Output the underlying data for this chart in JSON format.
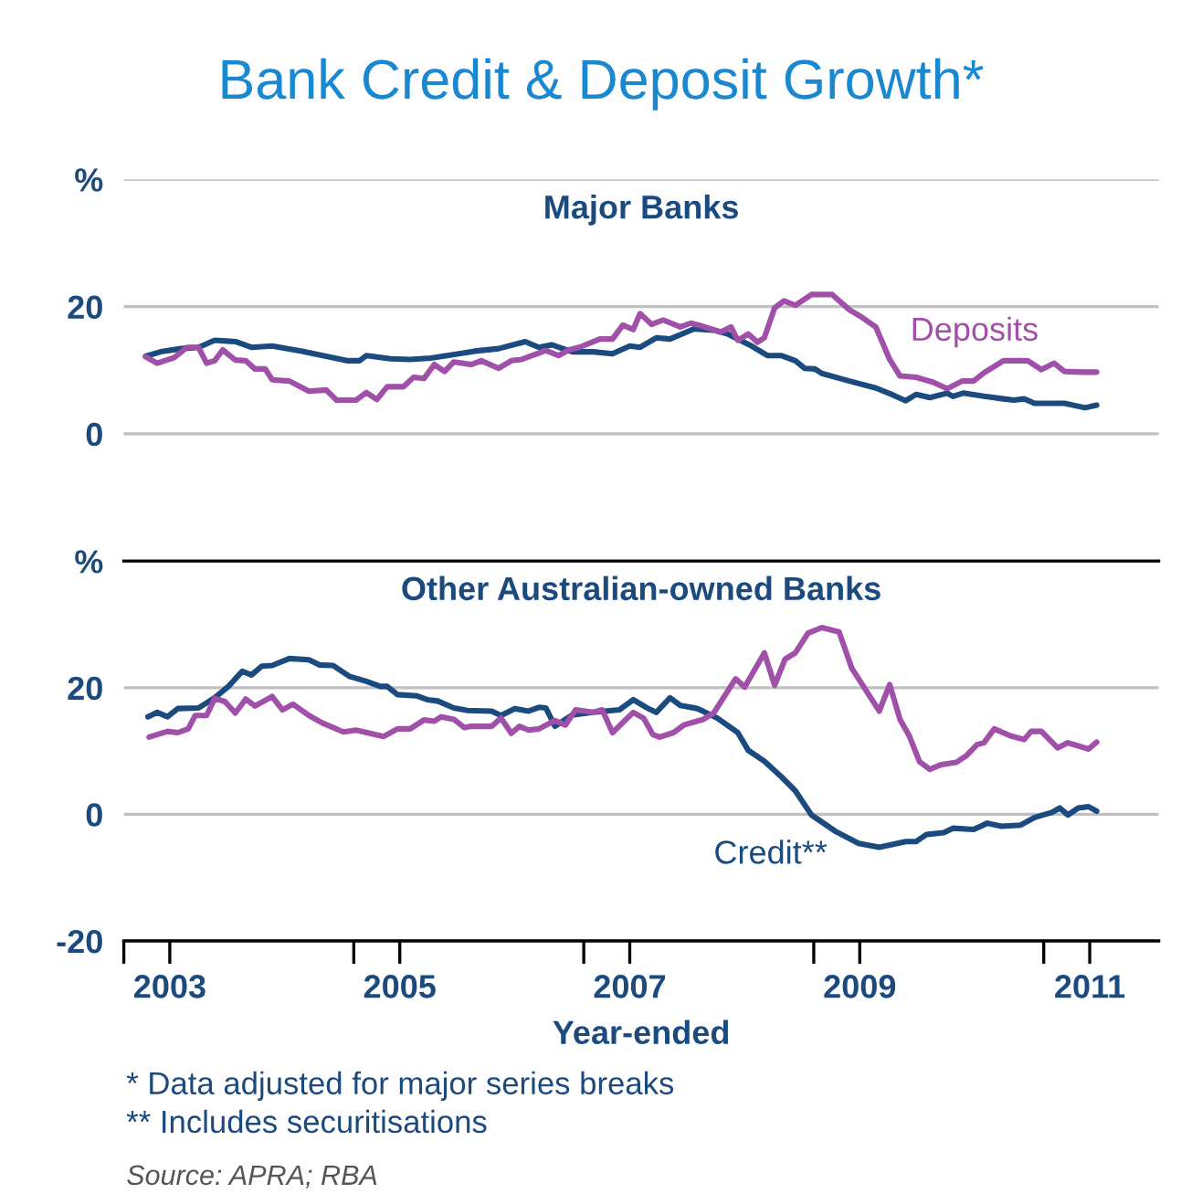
{
  "chart_data": [
    {
      "type": "line",
      "title": "Bank Credit & Deposit Growth*",
      "subtitle": "Major Banks",
      "xlim": [
        2003,
        2012
      ],
      "ylim": [
        -20,
        40
      ],
      "yticks": [
        {
          "value": 40,
          "label": "%"
        },
        20,
        0
      ],
      "grid": "y",
      "tick_labels": "y",
      "series": [
        {
          "color": "#1b4a7f",
          "x": [
            2003.19,
            2003.32,
            2003.5,
            2003.65,
            2003.79,
            2003.97,
            2004.11,
            2004.29,
            2004.55,
            2004.73,
            2004.94,
            2005.05,
            2005.11,
            2005.32,
            2005.49,
            2005.67,
            2005.85,
            2006.05,
            2006.26,
            2006.49,
            2006.61,
            2006.72,
            2006.9,
            2007.08,
            2007.25,
            2007.4,
            2007.49,
            2007.63,
            2007.75,
            2007.96,
            2008.13,
            2008.25,
            2008.46,
            2008.6,
            2008.72,
            2008.84,
            2008.92,
            2009.01,
            2009.07,
            2009.31,
            2009.54,
            2009.69,
            2009.8,
            2009.89,
            2010.01,
            2010.16,
            2010.21,
            2010.3,
            2010.48,
            2010.65,
            2010.74,
            2010.83,
            2010.92,
            2011.18,
            2011.36,
            2011.46
          ],
          "values": [
            12.2,
            12.9,
            13.4,
            13.6,
            14.7,
            14.5,
            13.6,
            13.8,
            13.0,
            12.3,
            11.5,
            11.5,
            12.3,
            11.8,
            11.7,
            11.9,
            12.4,
            13.0,
            13.4,
            14.5,
            13.6,
            14.0,
            12.9,
            12.9,
            12.6,
            13.8,
            13.6,
            15.1,
            14.9,
            16.5,
            16.3,
            15.7,
            13.8,
            12.3,
            12.3,
            11.5,
            10.3,
            10.2,
            9.5,
            8.3,
            7.2,
            6.1,
            5.2,
            6.2,
            5.7,
            6.4,
            5.9,
            6.4,
            5.9,
            5.5,
            5.3,
            5.5,
            4.8,
            4.8,
            4.1,
            4.5
          ]
        },
        {
          "name": "Deposits",
          "color": "#a050a8",
          "x": [
            2003.19,
            2003.29,
            2003.44,
            2003.55,
            2003.65,
            2003.72,
            2003.79,
            2003.86,
            2003.97,
            2004.06,
            2004.14,
            2004.23,
            2004.29,
            2004.44,
            2004.61,
            2004.76,
            2004.85,
            2005.02,
            2005.11,
            2005.2,
            2005.29,
            2005.43,
            2005.52,
            2005.61,
            2005.7,
            2005.79,
            2005.87,
            2006.02,
            2006.11,
            2006.26,
            2006.37,
            2006.46,
            2006.67,
            2006.78,
            2006.87,
            2006.96,
            2007.14,
            2007.25,
            2007.34,
            2007.43,
            2007.49,
            2007.59,
            2007.69,
            2007.84,
            2007.93,
            2008.02,
            2008.19,
            2008.28,
            2008.34,
            2008.43,
            2008.51,
            2008.57,
            2008.66,
            2008.74,
            2008.84,
            2008.98,
            2009.16,
            2009.31,
            2009.42,
            2009.54,
            2009.66,
            2009.75,
            2009.89,
            2010.04,
            2010.16,
            2010.29,
            2010.39,
            2010.48,
            2010.65,
            2010.86,
            2010.98,
            2011.09,
            2011.18,
            2011.33,
            2011.46
          ],
          "values": [
            12.1,
            11.1,
            12.0,
            13.6,
            13.6,
            11.1,
            11.5,
            13.2,
            11.6,
            11.5,
            10.2,
            10.2,
            8.5,
            8.3,
            6.7,
            6.9,
            5.3,
            5.3,
            6.5,
            5.4,
            7.4,
            7.4,
            8.9,
            8.7,
            10.9,
            9.8,
            11.3,
            10.9,
            11.5,
            10.3,
            11.5,
            11.7,
            13.1,
            12.3,
            13.2,
            13.6,
            14.9,
            14.9,
            17.1,
            16.4,
            18.9,
            17.2,
            17.9,
            16.8,
            17.4,
            17.0,
            16.0,
            16.8,
            14.7,
            15.7,
            14.4,
            15.1,
            19.8,
            20.9,
            20.2,
            21.9,
            21.9,
            19.5,
            18.3,
            16.8,
            11.7,
            9.1,
            8.9,
            8.1,
            7.1,
            8.3,
            8.3,
            9.6,
            11.5,
            11.5,
            10.1,
            11.1,
            9.8,
            9.7,
            9.7
          ]
        }
      ]
    },
    {
      "type": "line",
      "subtitle": "Other Australian-owned Banks",
      "xlabel": "Year-ended",
      "xlim": [
        2003,
        2012
      ],
      "ylim": [
        -20,
        40
      ],
      "yticks": [
        {
          "value": 40,
          "label": "%"
        },
        20,
        0,
        -20
      ],
      "grid": "y",
      "xticks": [
        {
          "value": 2003,
          "label": null
        },
        {
          "value": 2003.4,
          "label": "2003"
        },
        {
          "value": 2005,
          "label": null
        },
        {
          "value": 2005.4,
          "label": "2005"
        },
        {
          "value": 2007,
          "label": null
        },
        {
          "value": 2007.4,
          "label": "2007"
        },
        {
          "value": 2009,
          "label": null
        },
        {
          "value": 2009.4,
          "label": "2009"
        },
        {
          "value": 2011,
          "label": null
        },
        {
          "value": 2011.4,
          "label": "2011"
        }
      ],
      "annotations": [
        "* Data adjusted for major series breaks",
        "** Includes securitisations",
        "Source: APRA; RBA"
      ],
      "series": [
        {
          "name": "Credit**",
          "color": "#1b4a7f",
          "x": [
            2003.21,
            2003.29,
            2003.38,
            2003.47,
            2003.65,
            2003.79,
            2003.91,
            2004.03,
            2004.11,
            2004.2,
            2004.29,
            2004.44,
            2004.61,
            2004.7,
            2004.82,
            2004.96,
            2005.11,
            2005.23,
            2005.29,
            2005.38,
            2005.55,
            2005.64,
            2005.73,
            2005.87,
            2005.99,
            2006.2,
            2006.28,
            2006.4,
            2006.52,
            2006.61,
            2006.67,
            2006.75,
            2006.9,
            2007.08,
            2007.31,
            2007.43,
            2007.55,
            2007.63,
            2007.75,
            2007.84,
            2007.99,
            2008.16,
            2008.34,
            2008.43,
            2008.57,
            2008.72,
            2008.84,
            2008.98,
            2009.19,
            2009.39,
            2009.57,
            2009.8,
            2009.89,
            2009.98,
            2010.13,
            2010.21,
            2010.39,
            2010.51,
            2010.63,
            2010.8,
            2010.92,
            2011.07,
            2011.14,
            2011.21,
            2011.3,
            2011.39,
            2011.46
          ],
          "values": [
            15.4,
            16.1,
            15.4,
            16.7,
            16.8,
            18.4,
            20.2,
            22.6,
            22.0,
            23.4,
            23.5,
            24.6,
            24.4,
            23.6,
            23.5,
            21.8,
            21.0,
            20.2,
            20.2,
            18.9,
            18.7,
            18.1,
            17.9,
            16.8,
            16.4,
            16.3,
            15.6,
            16.7,
            16.3,
            16.9,
            16.8,
            13.9,
            15.7,
            16.1,
            16.5,
            18.1,
            16.8,
            16.1,
            18.4,
            17.2,
            16.7,
            15.2,
            12.9,
            10.1,
            8.4,
            5.9,
            3.7,
            -0.1,
            -2.7,
            -4.6,
            -5.2,
            -4.3,
            -4.3,
            -3.2,
            -2.9,
            -2.2,
            -2.4,
            -1.4,
            -1.9,
            -1.7,
            -0.5,
            0.3,
            1.0,
            -0.1,
            1.0,
            1.2,
            0.5
          ]
        },
        {
          "color": "#a050a8",
          "x": [
            2003.22,
            2003.38,
            2003.47,
            2003.56,
            2003.62,
            2003.72,
            2003.79,
            2003.88,
            2003.97,
            2004.06,
            2004.14,
            2004.29,
            2004.38,
            2004.47,
            2004.61,
            2004.73,
            2004.91,
            2005.02,
            2005.26,
            2005.38,
            2005.49,
            2005.61,
            2005.7,
            2005.76,
            2005.87,
            2005.96,
            2006.02,
            2006.2,
            2006.28,
            2006.37,
            2006.44,
            2006.52,
            2006.61,
            2006.75,
            2006.84,
            2006.93,
            2007.08,
            2007.16,
            2007.25,
            2007.43,
            2007.52,
            2007.6,
            2007.66,
            2007.78,
            2007.87,
            2008.04,
            2008.13,
            2008.32,
            2008.4,
            2008.57,
            2008.66,
            2008.75,
            2008.84,
            2008.95,
            2009.07,
            2009.22,
            2009.33,
            2009.45,
            2009.57,
            2009.66,
            2009.75,
            2009.83,
            2009.92,
            2010.01,
            2010.1,
            2010.24,
            2010.33,
            2010.42,
            2010.48,
            2010.57,
            2010.71,
            2010.83,
            2010.89,
            2010.98,
            2011.12,
            2011.21,
            2011.39,
            2011.46
          ],
          "values": [
            12.2,
            13.1,
            12.9,
            13.5,
            15.6,
            15.6,
            18.3,
            17.8,
            16.0,
            18.2,
            17.1,
            18.6,
            16.5,
            17.4,
            15.6,
            14.4,
            13.0,
            13.3,
            12.3,
            13.5,
            13.5,
            14.9,
            14.7,
            15.4,
            15.0,
            13.7,
            13.9,
            13.9,
            15.2,
            12.8,
            13.9,
            13.3,
            13.5,
            14.8,
            14.1,
            16.5,
            16.1,
            16.5,
            12.9,
            16.1,
            15.2,
            12.6,
            12.2,
            12.9,
            14.1,
            15.0,
            16.0,
            21.4,
            20.1,
            25.5,
            20.4,
            24.5,
            25.5,
            28.6,
            29.5,
            28.8,
            23.1,
            19.7,
            16.3,
            20.5,
            15.0,
            12.4,
            8.3,
            7.1,
            7.8,
            8.2,
            9.3,
            11.0,
            11.3,
            13.5,
            12.4,
            11.8,
            13.1,
            13.1,
            10.5,
            11.3,
            10.3,
            11.4
          ]
        }
      ]
    }
  ]
}
